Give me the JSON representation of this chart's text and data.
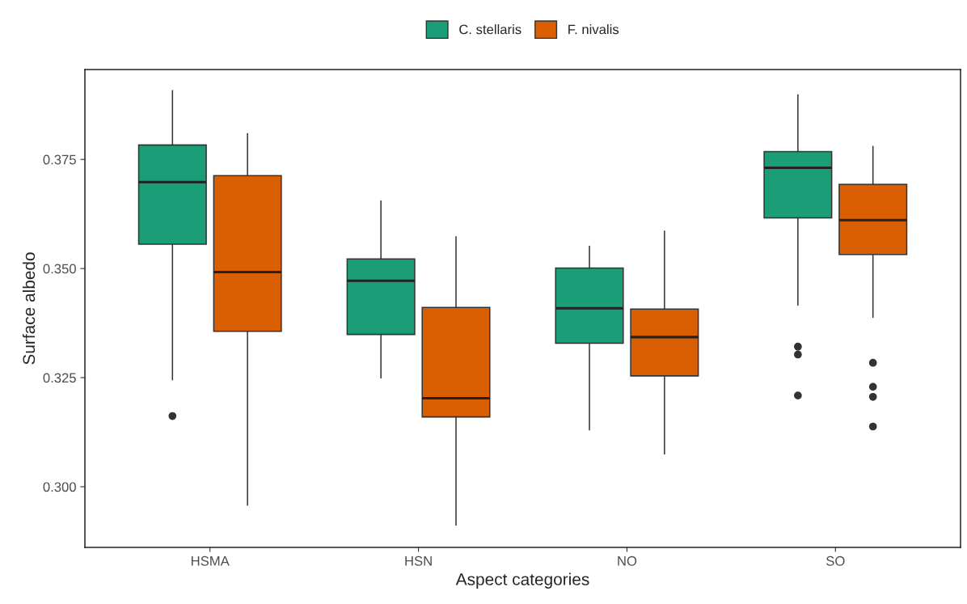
{
  "chart_data": {
    "type": "box",
    "xlabel": "Aspect categories",
    "ylabel": "Surface albedo",
    "categories": [
      "HSMA",
      "HSN",
      "NO",
      "SO"
    ],
    "ylim": [
      0.2861,
      0.3956
    ],
    "yticks": [
      {
        "value": 0.3,
        "label": "0.300"
      },
      {
        "value": 0.325,
        "label": "0.325"
      },
      {
        "value": 0.35,
        "label": "0.350"
      },
      {
        "value": 0.375,
        "label": "0.375"
      }
    ],
    "grid": false,
    "legend": "top",
    "series": [
      {
        "name": "C. stellaris",
        "color": "#1b9e77",
        "boxes": [
          {
            "low": 0.3245,
            "q1": 0.3556,
            "median": 0.3698,
            "q3": 0.3783,
            "high": 0.3908,
            "outliers": [
              0.3162
            ]
          },
          {
            "low": 0.3249,
            "q1": 0.3349,
            "median": 0.3472,
            "q3": 0.3522,
            "high": 0.3655
          },
          {
            "low": 0.313,
            "q1": 0.3329,
            "median": 0.3409,
            "q3": 0.3501,
            "high": 0.3551
          },
          {
            "low": 0.3416,
            "q1": 0.3616,
            "median": 0.3731,
            "q3": 0.3768,
            "high": 0.3898,
            "outliers": [
              0.3321,
              0.3303,
              0.3209
            ]
          }
        ]
      },
      {
        "name": "F. nivalis",
        "color": "#d95f02",
        "boxes": [
          {
            "low": 0.2958,
            "q1": 0.3356,
            "median": 0.3492,
            "q3": 0.3713,
            "high": 0.3809
          },
          {
            "low": 0.2912,
            "q1": 0.316,
            "median": 0.3203,
            "q3": 0.3411,
            "high": 0.3573
          },
          {
            "low": 0.3075,
            "q1": 0.3254,
            "median": 0.3343,
            "q3": 0.3407,
            "high": 0.3586
          },
          {
            "low": 0.3388,
            "q1": 0.3532,
            "median": 0.3611,
            "q3": 0.3693,
            "high": 0.378,
            "outliers": [
              0.3284,
              0.3229,
              0.3206,
              0.3138
            ]
          }
        ]
      }
    ]
  }
}
